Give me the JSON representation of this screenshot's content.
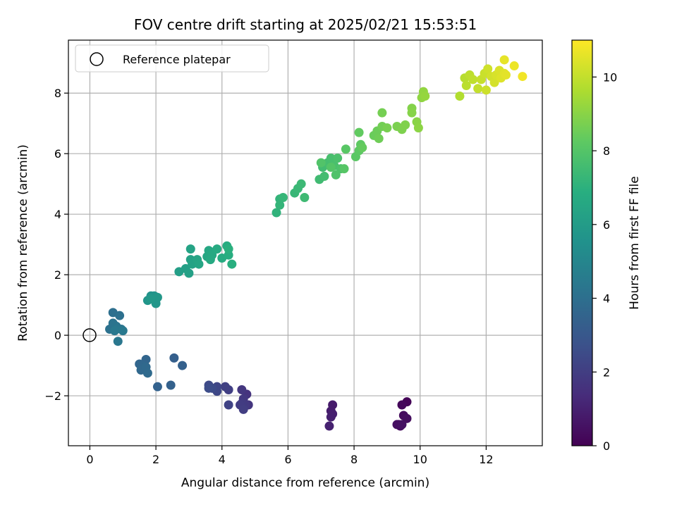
{
  "chart_data": {
    "type": "scatter",
    "title": "FOV centre drift starting at 2025/02/21 15:53:51",
    "xlabel": "Angular distance from reference (arcmin)",
    "ylabel": "Rotation from reference (arcmin)",
    "xlim": [
      -0.65,
      13.7
    ],
    "ylim": [
      -3.65,
      9.75
    ],
    "xticks": [
      0,
      2,
      4,
      6,
      8,
      10,
      12
    ],
    "yticks": [
      -2,
      0,
      2,
      4,
      6,
      8
    ],
    "xtick_labels": [
      "0",
      "2",
      "4",
      "6",
      "8",
      "10",
      "12"
    ],
    "ytick_labels": [
      "−2",
      "0",
      "2",
      "4",
      "6",
      "8"
    ],
    "grid": true,
    "colormap": "viridis",
    "colorbar": {
      "label": "Hours from first FF file",
      "range": [
        0,
        11
      ],
      "ticks": [
        0,
        2,
        4,
        6,
        8,
        10
      ],
      "tick_labels": [
        "0",
        "2",
        "4",
        "6",
        "8",
        "10"
      ]
    },
    "legend": {
      "placement": "top-left",
      "entries": [
        "Reference platepar"
      ]
    },
    "reference_point": {
      "x": 0,
      "y": 0,
      "marker": "open-circle"
    },
    "points": [
      {
        "x": 9.6,
        "y": -2.2,
        "h": 0.1
      },
      {
        "x": 9.45,
        "y": -2.3,
        "h": 0.2
      },
      {
        "x": 9.35,
        "y": -2.95,
        "h": 0.25
      },
      {
        "x": 9.4,
        "y": -3.0,
        "h": 0.3
      },
      {
        "x": 9.5,
        "y": -2.65,
        "h": 0.35
      },
      {
        "x": 9.6,
        "y": -2.75,
        "h": 0.4
      },
      {
        "x": 9.3,
        "y": -2.95,
        "h": 0.45
      },
      {
        "x": 9.45,
        "y": -2.95,
        "h": 0.5
      },
      {
        "x": 7.35,
        "y": -2.3,
        "h": 0.8
      },
      {
        "x": 7.3,
        "y": -2.5,
        "h": 0.85
      },
      {
        "x": 7.35,
        "y": -2.6,
        "h": 0.9
      },
      {
        "x": 7.3,
        "y": -2.7,
        "h": 0.95
      },
      {
        "x": 7.25,
        "y": -3.0,
        "h": 1.0
      },
      {
        "x": 4.75,
        "y": -1.95,
        "h": 1.6
      },
      {
        "x": 4.8,
        "y": -2.3,
        "h": 1.7
      },
      {
        "x": 4.6,
        "y": -1.8,
        "h": 1.75
      },
      {
        "x": 4.65,
        "y": -2.1,
        "h": 1.8
      },
      {
        "x": 4.7,
        "y": -2.3,
        "h": 1.85
      },
      {
        "x": 4.6,
        "y": -2.25,
        "h": 1.9
      },
      {
        "x": 4.55,
        "y": -2.3,
        "h": 1.95
      },
      {
        "x": 4.65,
        "y": -2.45,
        "h": 2.0
      },
      {
        "x": 4.2,
        "y": -1.8,
        "h": 2.05
      },
      {
        "x": 4.1,
        "y": -1.7,
        "h": 2.1
      },
      {
        "x": 4.2,
        "y": -2.3,
        "h": 2.2
      },
      {
        "x": 3.85,
        "y": -1.7,
        "h": 2.3
      },
      {
        "x": 3.85,
        "y": -1.85,
        "h": 2.35
      },
      {
        "x": 3.6,
        "y": -1.65,
        "h": 2.45
      },
      {
        "x": 3.7,
        "y": -1.75,
        "h": 2.5
      },
      {
        "x": 3.6,
        "y": -1.75,
        "h": 2.55
      },
      {
        "x": 2.55,
        "y": -0.75,
        "h": 3.3
      },
      {
        "x": 2.8,
        "y": -1.0,
        "h": 3.35
      },
      {
        "x": 2.45,
        "y": -1.65,
        "h": 3.4
      },
      {
        "x": 2.05,
        "y": -1.7,
        "h": 3.45
      },
      {
        "x": 1.7,
        "y": -0.8,
        "h": 3.55
      },
      {
        "x": 1.5,
        "y": -0.95,
        "h": 3.6
      },
      {
        "x": 1.6,
        "y": -1.0,
        "h": 3.65
      },
      {
        "x": 1.55,
        "y": -1.15,
        "h": 3.7
      },
      {
        "x": 1.7,
        "y": -1.05,
        "h": 3.75
      },
      {
        "x": 1.75,
        "y": -1.25,
        "h": 3.8
      },
      {
        "x": 0.7,
        "y": 0.75,
        "h": 4.0
      },
      {
        "x": 0.9,
        "y": 0.65,
        "h": 4.05
      },
      {
        "x": 0.6,
        "y": 0.2,
        "h": 4.1
      },
      {
        "x": 0.7,
        "y": 0.4,
        "h": 4.15
      },
      {
        "x": 0.8,
        "y": 0.3,
        "h": 4.2
      },
      {
        "x": 0.95,
        "y": 0.2,
        "h": 4.25
      },
      {
        "x": 0.8,
        "y": 0.2,
        "h": 4.3
      },
      {
        "x": 0.85,
        "y": -0.2,
        "h": 4.35
      },
      {
        "x": 0.75,
        "y": 0.15,
        "h": 4.4
      },
      {
        "x": 1.0,
        "y": 0.15,
        "h": 4.45
      },
      {
        "x": 1.85,
        "y": 1.3,
        "h": 5.6
      },
      {
        "x": 1.95,
        "y": 1.3,
        "h": 5.65
      },
      {
        "x": 1.75,
        "y": 1.15,
        "h": 5.7
      },
      {
        "x": 2.0,
        "y": 1.05,
        "h": 5.75
      },
      {
        "x": 2.05,
        "y": 1.25,
        "h": 5.8
      },
      {
        "x": 1.85,
        "y": 1.2,
        "h": 5.85
      },
      {
        "x": 2.7,
        "y": 2.1,
        "h": 6.1
      },
      {
        "x": 2.9,
        "y": 2.2,
        "h": 6.15
      },
      {
        "x": 3.0,
        "y": 2.05,
        "h": 6.2
      },
      {
        "x": 3.05,
        "y": 2.5,
        "h": 6.25
      },
      {
        "x": 3.1,
        "y": 2.35,
        "h": 6.3
      },
      {
        "x": 3.05,
        "y": 2.85,
        "h": 6.35
      },
      {
        "x": 3.25,
        "y": 2.5,
        "h": 6.4
      },
      {
        "x": 3.3,
        "y": 2.35,
        "h": 6.45
      },
      {
        "x": 3.55,
        "y": 2.6,
        "h": 6.5
      },
      {
        "x": 3.6,
        "y": 2.8,
        "h": 6.55
      },
      {
        "x": 3.7,
        "y": 2.65,
        "h": 6.6
      },
      {
        "x": 3.65,
        "y": 2.5,
        "h": 6.65
      },
      {
        "x": 3.85,
        "y": 2.85,
        "h": 6.7
      },
      {
        "x": 4.0,
        "y": 2.55,
        "h": 6.75
      },
      {
        "x": 4.15,
        "y": 2.95,
        "h": 6.8
      },
      {
        "x": 4.2,
        "y": 2.65,
        "h": 6.85
      },
      {
        "x": 4.3,
        "y": 2.35,
        "h": 6.9
      },
      {
        "x": 4.2,
        "y": 2.85,
        "h": 6.95
      },
      {
        "x": 5.65,
        "y": 4.05,
        "h": 7.1
      },
      {
        "x": 5.75,
        "y": 4.5,
        "h": 7.15
      },
      {
        "x": 5.75,
        "y": 4.3,
        "h": 7.2
      },
      {
        "x": 5.85,
        "y": 4.55,
        "h": 7.25
      },
      {
        "x": 6.2,
        "y": 4.7,
        "h": 7.3
      },
      {
        "x": 6.3,
        "y": 4.85,
        "h": 7.35
      },
      {
        "x": 6.4,
        "y": 5.0,
        "h": 7.4
      },
      {
        "x": 6.5,
        "y": 4.55,
        "h": 7.45
      },
      {
        "x": 6.95,
        "y": 5.15,
        "h": 7.5
      },
      {
        "x": 7.05,
        "y": 5.55,
        "h": 7.55
      },
      {
        "x": 7.1,
        "y": 5.25,
        "h": 7.6
      },
      {
        "x": 7.2,
        "y": 5.7,
        "h": 7.65
      },
      {
        "x": 7.3,
        "y": 5.85,
        "h": 7.7
      },
      {
        "x": 7.4,
        "y": 5.6,
        "h": 7.75
      },
      {
        "x": 7.5,
        "y": 5.85,
        "h": 7.8
      },
      {
        "x": 7.6,
        "y": 5.5,
        "h": 7.85
      },
      {
        "x": 7.45,
        "y": 5.3,
        "h": 7.9
      },
      {
        "x": 7.0,
        "y": 5.7,
        "h": 7.95
      },
      {
        "x": 7.3,
        "y": 5.55,
        "h": 8.0
      },
      {
        "x": 7.7,
        "y": 5.5,
        "h": 8.05
      },
      {
        "x": 7.75,
        "y": 6.15,
        "h": 8.1
      },
      {
        "x": 8.05,
        "y": 5.9,
        "h": 8.15
      },
      {
        "x": 8.15,
        "y": 6.1,
        "h": 8.2
      },
      {
        "x": 8.2,
        "y": 6.3,
        "h": 8.25
      },
      {
        "x": 8.15,
        "y": 6.7,
        "h": 8.3
      },
      {
        "x": 8.25,
        "y": 6.2,
        "h": 8.35
      },
      {
        "x": 8.6,
        "y": 6.6,
        "h": 8.45
      },
      {
        "x": 8.7,
        "y": 6.75,
        "h": 8.5
      },
      {
        "x": 8.75,
        "y": 6.5,
        "h": 8.55
      },
      {
        "x": 8.85,
        "y": 6.9,
        "h": 8.6
      },
      {
        "x": 8.85,
        "y": 7.35,
        "h": 8.65
      },
      {
        "x": 9.0,
        "y": 6.85,
        "h": 8.7
      },
      {
        "x": 9.3,
        "y": 6.9,
        "h": 8.75
      },
      {
        "x": 9.45,
        "y": 6.8,
        "h": 8.8
      },
      {
        "x": 9.55,
        "y": 6.95,
        "h": 8.85
      },
      {
        "x": 9.75,
        "y": 7.5,
        "h": 8.9
      },
      {
        "x": 9.75,
        "y": 7.35,
        "h": 8.95
      },
      {
        "x": 9.9,
        "y": 7.05,
        "h": 9.0
      },
      {
        "x": 9.95,
        "y": 6.85,
        "h": 9.05
      },
      {
        "x": 10.05,
        "y": 7.85,
        "h": 9.1
      },
      {
        "x": 10.1,
        "y": 8.05,
        "h": 9.15
      },
      {
        "x": 10.15,
        "y": 7.9,
        "h": 9.2
      },
      {
        "x": 11.2,
        "y": 7.9,
        "h": 9.7
      },
      {
        "x": 11.35,
        "y": 8.5,
        "h": 9.8
      },
      {
        "x": 11.4,
        "y": 8.25,
        "h": 9.85
      },
      {
        "x": 11.5,
        "y": 8.6,
        "h": 9.9
      },
      {
        "x": 11.6,
        "y": 8.45,
        "h": 9.95
      },
      {
        "x": 11.75,
        "y": 8.15,
        "h": 10.0
      },
      {
        "x": 11.85,
        "y": 8.45,
        "h": 10.05
      },
      {
        "x": 11.95,
        "y": 8.65,
        "h": 10.1
      },
      {
        "x": 12.0,
        "y": 8.1,
        "h": 10.15
      },
      {
        "x": 12.05,
        "y": 8.8,
        "h": 10.2
      },
      {
        "x": 12.15,
        "y": 8.55,
        "h": 10.25
      },
      {
        "x": 12.25,
        "y": 8.35,
        "h": 10.3
      },
      {
        "x": 12.3,
        "y": 8.6,
        "h": 10.35
      },
      {
        "x": 12.4,
        "y": 8.75,
        "h": 10.4
      },
      {
        "x": 12.45,
        "y": 8.5,
        "h": 10.45
      },
      {
        "x": 12.55,
        "y": 8.65,
        "h": 10.5
      },
      {
        "x": 12.6,
        "y": 8.6,
        "h": 10.55
      },
      {
        "x": 12.55,
        "y": 9.1,
        "h": 10.6
      },
      {
        "x": 12.85,
        "y": 8.9,
        "h": 10.7
      },
      {
        "x": 13.1,
        "y": 8.55,
        "h": 10.8
      }
    ]
  }
}
